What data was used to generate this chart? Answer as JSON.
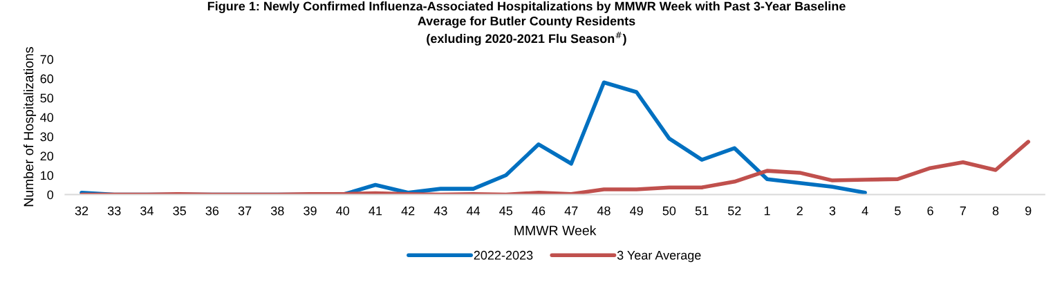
{
  "chart_data": {
    "type": "line",
    "title": "Figure 1: Newly Confirmed Influenza-Associated Hospitalizations by MMWR Week with Past 3-Year Baseline\nAverage for Butler County Residents\n(exluding 2020-2021 Flu Season$^{#}$)",
    "xlabel": "MMWR Week",
    "ylabel": "Number of Hospitalizations",
    "categories": [
      "32",
      "33",
      "34",
      "35",
      "36",
      "37",
      "38",
      "39",
      "40",
      "41",
      "42",
      "43",
      "44",
      "45",
      "46",
      "47",
      "48",
      "49",
      "50",
      "51",
      "52",
      "1",
      "2",
      "3",
      "4",
      "5",
      "6",
      "7",
      "8",
      "9"
    ],
    "series": [
      {
        "name": "2022-2023",
        "color": "#0070c0",
        "values": [
          1,
          0,
          0,
          0,
          0,
          0,
          0,
          0,
          0,
          5,
          1,
          3,
          3,
          10,
          26,
          16,
          58,
          53,
          29,
          18,
          24,
          8,
          6,
          4,
          1,
          null,
          null,
          null,
          null,
          null
        ]
      },
      {
        "name": "3 Year Average",
        "color": "#c0504d",
        "values": [
          0,
          0,
          0,
          0.3,
          0,
          0,
          0,
          0.3,
          0.3,
          0.7,
          0.3,
          0,
          0.3,
          0,
          1,
          0.3,
          2.7,
          2.7,
          3.7,
          3.7,
          6.7,
          12.3,
          11.3,
          7.3,
          7.7,
          8,
          13.7,
          16.7,
          12.7,
          27.3
        ]
      }
    ],
    "ylim": [
      0,
      70
    ],
    "yticks": [
      0,
      10,
      20,
      30,
      40,
      50,
      60,
      70
    ],
    "grid": false,
    "legend": "bottom",
    "marker": "none",
    "line_style": "solid"
  }
}
